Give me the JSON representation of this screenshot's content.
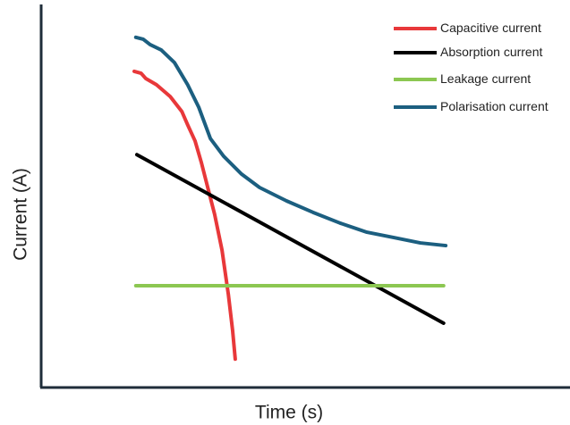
{
  "chart_data": {
    "type": "line",
    "x_label": "Time (s)",
    "y_label": "Current (A)",
    "xlim": [
      0,
      100
    ],
    "ylim": [
      0,
      100
    ],
    "legend": "upper right",
    "series": [
      {
        "name": "Capacitive current",
        "color": "#e8383a",
        "x": [
          17.6,
          18.9,
          19.8,
          21.8,
          24.4,
          26.6,
          27.7,
          29.1,
          30.3,
          31.5,
          32.8,
          34.2,
          35.4,
          36.2,
          36.7
        ],
        "values": [
          82.5,
          82.0,
          80.6,
          79.0,
          75.9,
          72.0,
          68.5,
          64.3,
          58.6,
          52.1,
          45.1,
          35.7,
          24.1,
          14.7,
          7.2
        ]
      },
      {
        "name": "Absorption current",
        "color": "#000000",
        "x": [
          18.1,
          76.1
        ],
        "values": [
          60.7,
          16.6
        ]
      },
      {
        "name": "Leakage current",
        "color": "#8cc752",
        "x": [
          17.9,
          76.1
        ],
        "values": [
          26.4,
          26.4
        ]
      },
      {
        "name": "Polarisation current",
        "color": "#1c5f80",
        "x": [
          17.9,
          19.3,
          20.6,
          22.7,
          25.2,
          27.7,
          29.8,
          32.0,
          34.5,
          37.9,
          41.3,
          46.4,
          51.4,
          56.5,
          61.6,
          66.7,
          71.7,
          76.5
        ],
        "values": [
          91.4,
          90.9,
          89.5,
          88.1,
          84.8,
          79.0,
          73.1,
          64.9,
          60.3,
          55.6,
          52.1,
          48.6,
          45.6,
          42.8,
          40.4,
          39.0,
          37.6,
          36.9
        ]
      }
    ]
  }
}
